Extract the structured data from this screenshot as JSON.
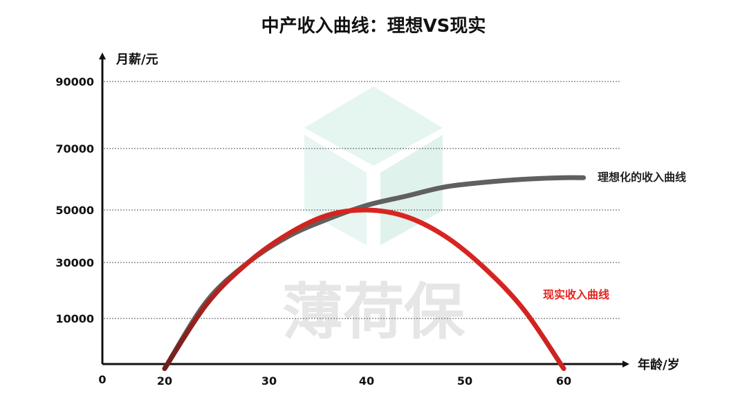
{
  "chart_data": {
    "type": "line",
    "title": "中产收入曲线：理想VS现实",
    "xlabel": "年龄/岁",
    "ylabel": "月薪/元",
    "origin_label": "0",
    "x_ticks": [
      20,
      30,
      40,
      50,
      60
    ],
    "y_ticks": [
      10000,
      30000,
      50000,
      70000,
      90000
    ],
    "grid": "horizontal dotted",
    "series": [
      {
        "name": "理想化的收入曲线",
        "color": "#606060",
        "x": [
          20,
          24,
          28,
          32,
          36,
          40,
          44,
          48,
          52,
          56,
          60,
          62
        ],
        "y": [
          -1000,
          16000,
          30000,
          40000,
          46500,
          51500,
          54500,
          57500,
          59000,
          60000,
          60500,
          60500
        ]
      },
      {
        "name": "现实收入曲线",
        "color": "#e52521",
        "x": [
          20,
          24,
          28,
          32,
          36,
          40,
          44,
          48,
          52,
          56,
          60
        ],
        "y": [
          -1000,
          15000,
          30000,
          41000,
          48000,
          50000,
          47500,
          40000,
          28000,
          13000,
          -1000
        ]
      }
    ]
  },
  "watermark": {
    "text": "薄荷保",
    "colors": [
      "#e3f4ee",
      "#e6f5f1",
      "#ddf1ea"
    ]
  }
}
